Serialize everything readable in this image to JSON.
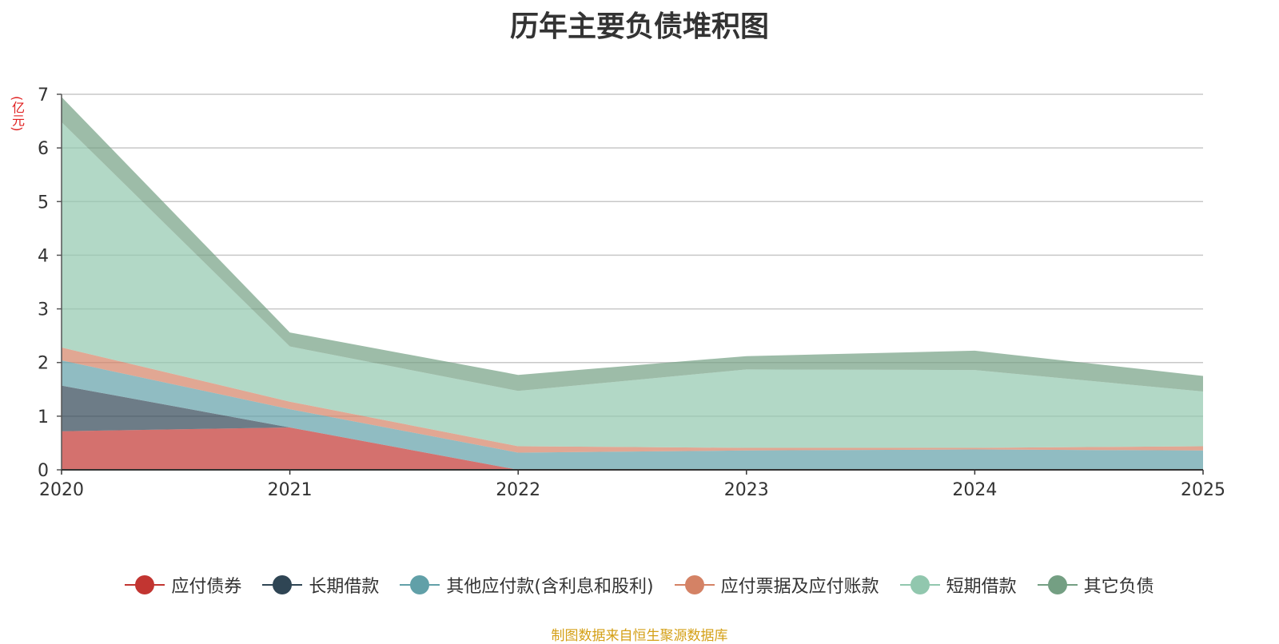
{
  "chart_data": {
    "type": "area",
    "stacked": true,
    "title": "历年主要负债堆积图",
    "unit": "(亿元)",
    "x": [
      "2020",
      "2021",
      "2022",
      "2023",
      "2024",
      "2025"
    ],
    "ylim": [
      0,
      7
    ],
    "yticks": [
      "0",
      "1",
      "2",
      "3",
      "4",
      "5",
      "6",
      "7"
    ],
    "grid": true,
    "legend_position": "bottom",
    "series": [
      {
        "name": "应付债券",
        "color": "#c23531",
        "values": [
          0.72,
          0.79,
          0,
          0,
          0,
          0
        ]
      },
      {
        "name": "长期借款",
        "color": "#2f4554",
        "values": [
          0.85,
          0,
          0,
          0,
          0,
          0
        ]
      },
      {
        "name": "其他应付款(含利息和股利)",
        "color": "#61a0a8",
        "values": [
          0.47,
          0.34,
          0.32,
          0.36,
          0.38,
          0.36
        ]
      },
      {
        "name": "应付票据及应付账款",
        "color": "#d48265",
        "values": [
          0.24,
          0.14,
          0.12,
          0.05,
          0.03,
          0.08
        ]
      },
      {
        "name": "短期借款",
        "color": "#91c7ae",
        "values": [
          4.2,
          1.03,
          1.03,
          1.46,
          1.45,
          1.02
        ]
      },
      {
        "name": "其它负债",
        "color": "#749f83",
        "values": [
          0.47,
          0.26,
          0.3,
          0.25,
          0.36,
          0.29
        ]
      }
    ]
  },
  "source_note": "制图数据来自恒生聚源数据库"
}
